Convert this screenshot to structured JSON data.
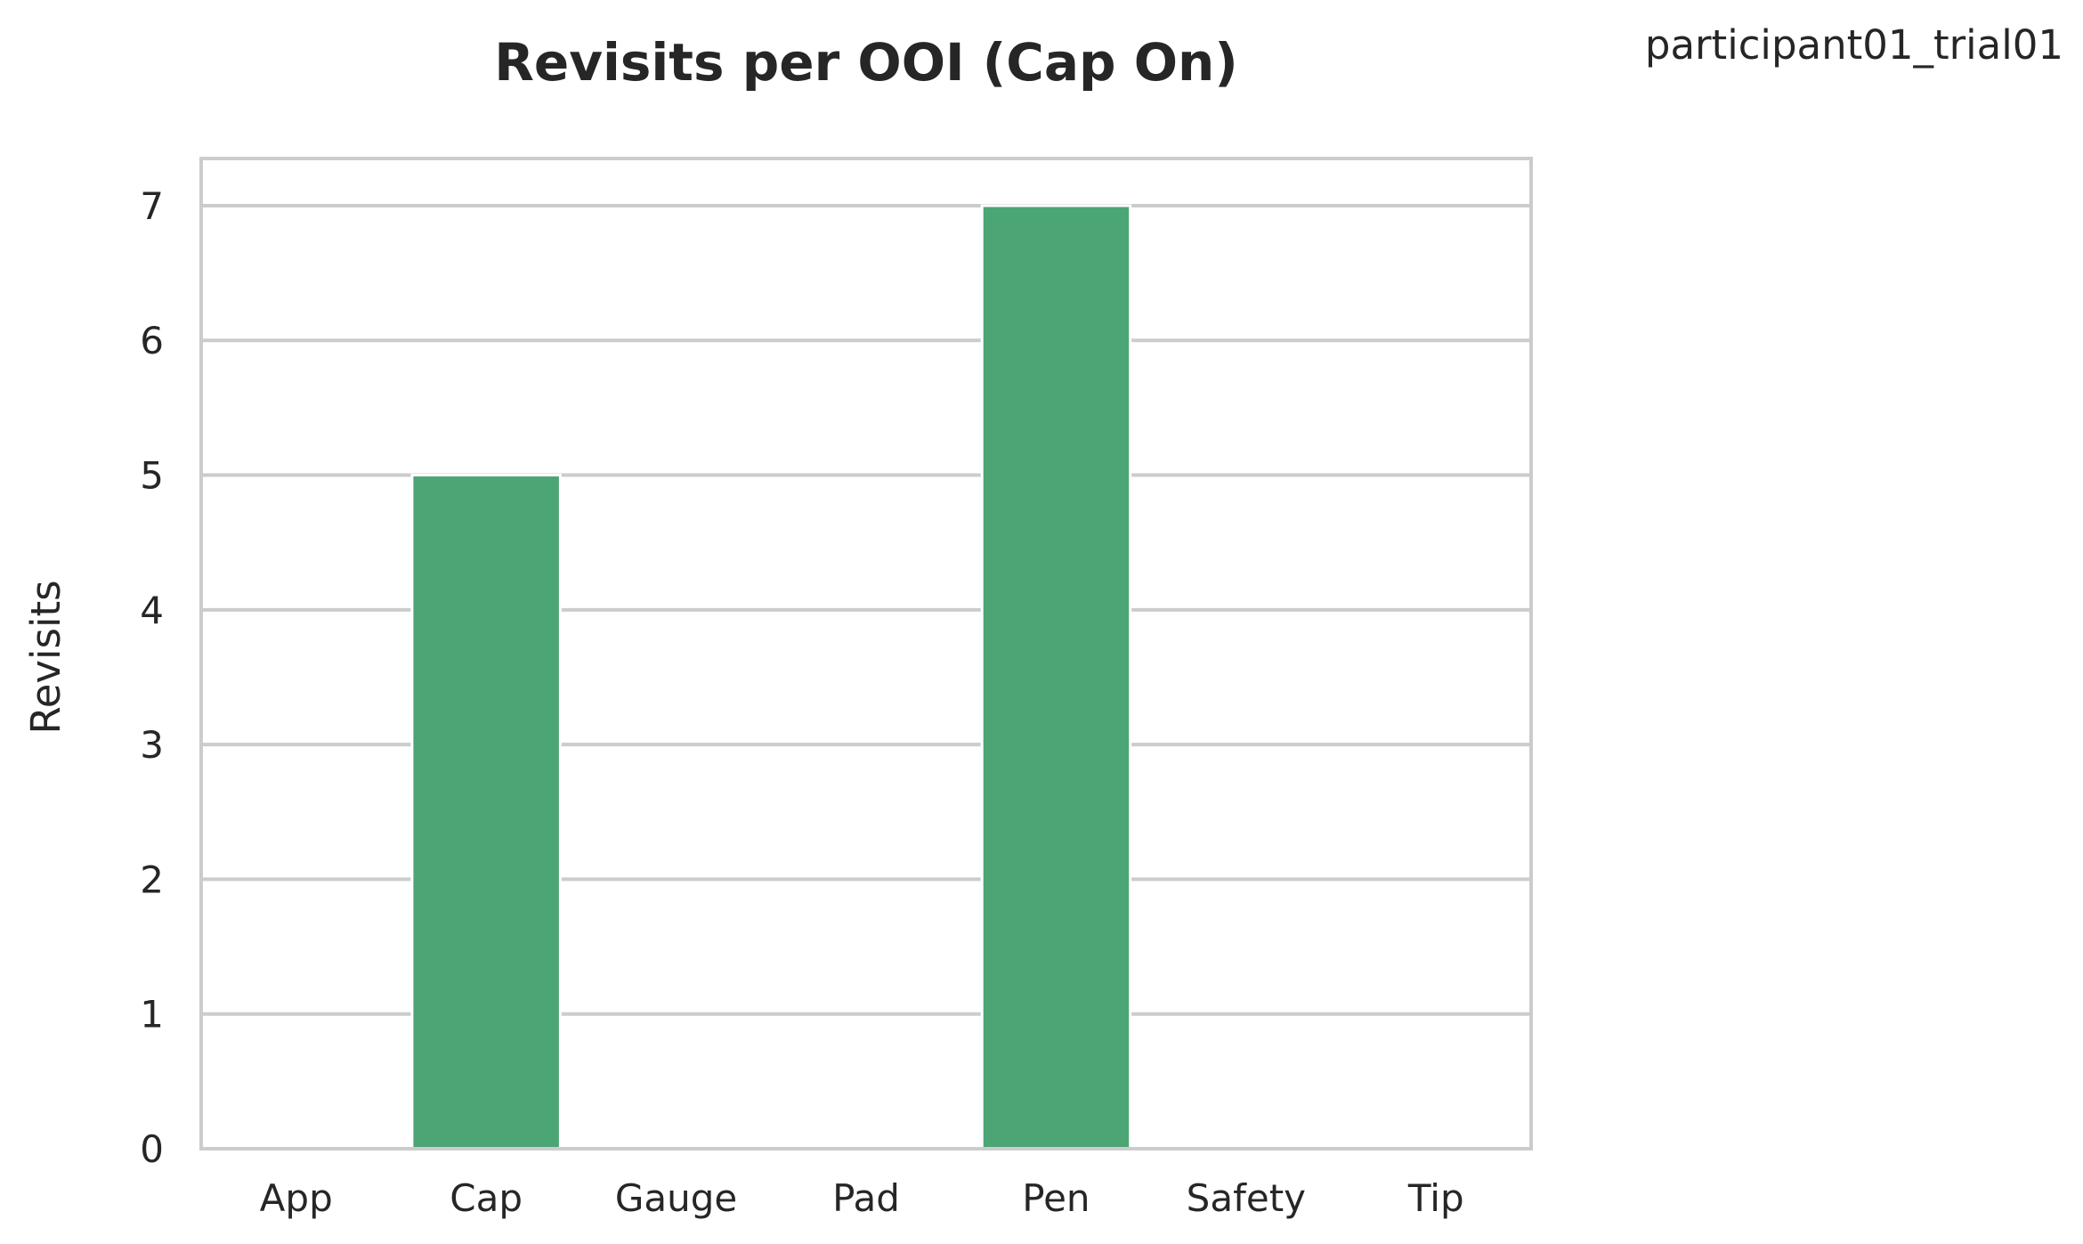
{
  "side_label": "participant01_trial01",
  "chart_data": {
    "type": "bar",
    "title": "Revisits per OOI (Cap On)",
    "xlabel": "",
    "ylabel": "Revisits",
    "categories": [
      "App",
      "Cap",
      "Gauge",
      "Pad",
      "Pen",
      "Safety",
      "Tip"
    ],
    "values": [
      0,
      5,
      0,
      0,
      7,
      0,
      0
    ],
    "ylim": [
      0,
      7.35
    ],
    "yticks": [
      0,
      1,
      2,
      3,
      4,
      5,
      6,
      7
    ],
    "grid": true,
    "bar_color": "#4ca574",
    "grid_color": "#cccccc"
  }
}
